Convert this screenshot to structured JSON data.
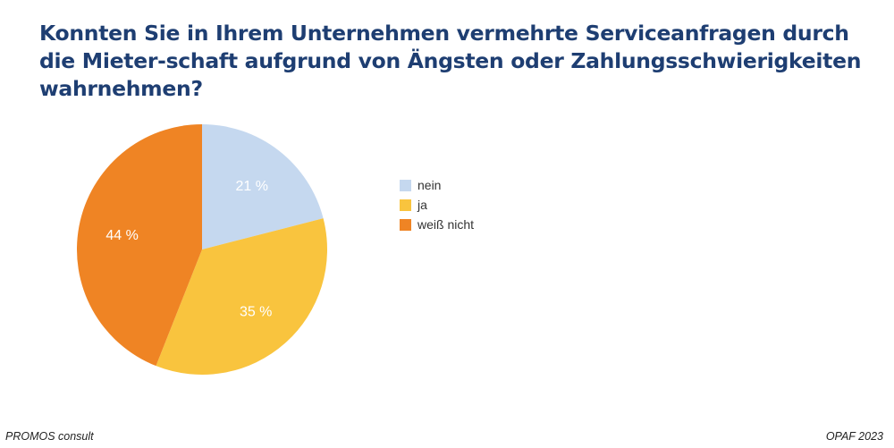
{
  "chart_data": {
    "type": "pie",
    "title": "Konnten Sie in Ihrem Unternehmen vermehrte Serviceanfragen durch die Mieter-schaft aufgrund von Ängsten oder Zahlungsschwierigkeiten wahrnehmen?",
    "slices": [
      {
        "label": "nein",
        "value": 21,
        "display": "21 %",
        "color": "#c5d8ef"
      },
      {
        "label": "ja",
        "value": 35,
        "display": "35 %",
        "color": "#f9c43e"
      },
      {
        "label": "weiß nicht",
        "value": 44,
        "display": "44 %",
        "color": "#ef8424"
      }
    ],
    "start": "top",
    "direction": "clockwise",
    "legend_position": "right"
  },
  "footer": {
    "left": "PROMOS consult",
    "right": "OPAF 2023"
  }
}
